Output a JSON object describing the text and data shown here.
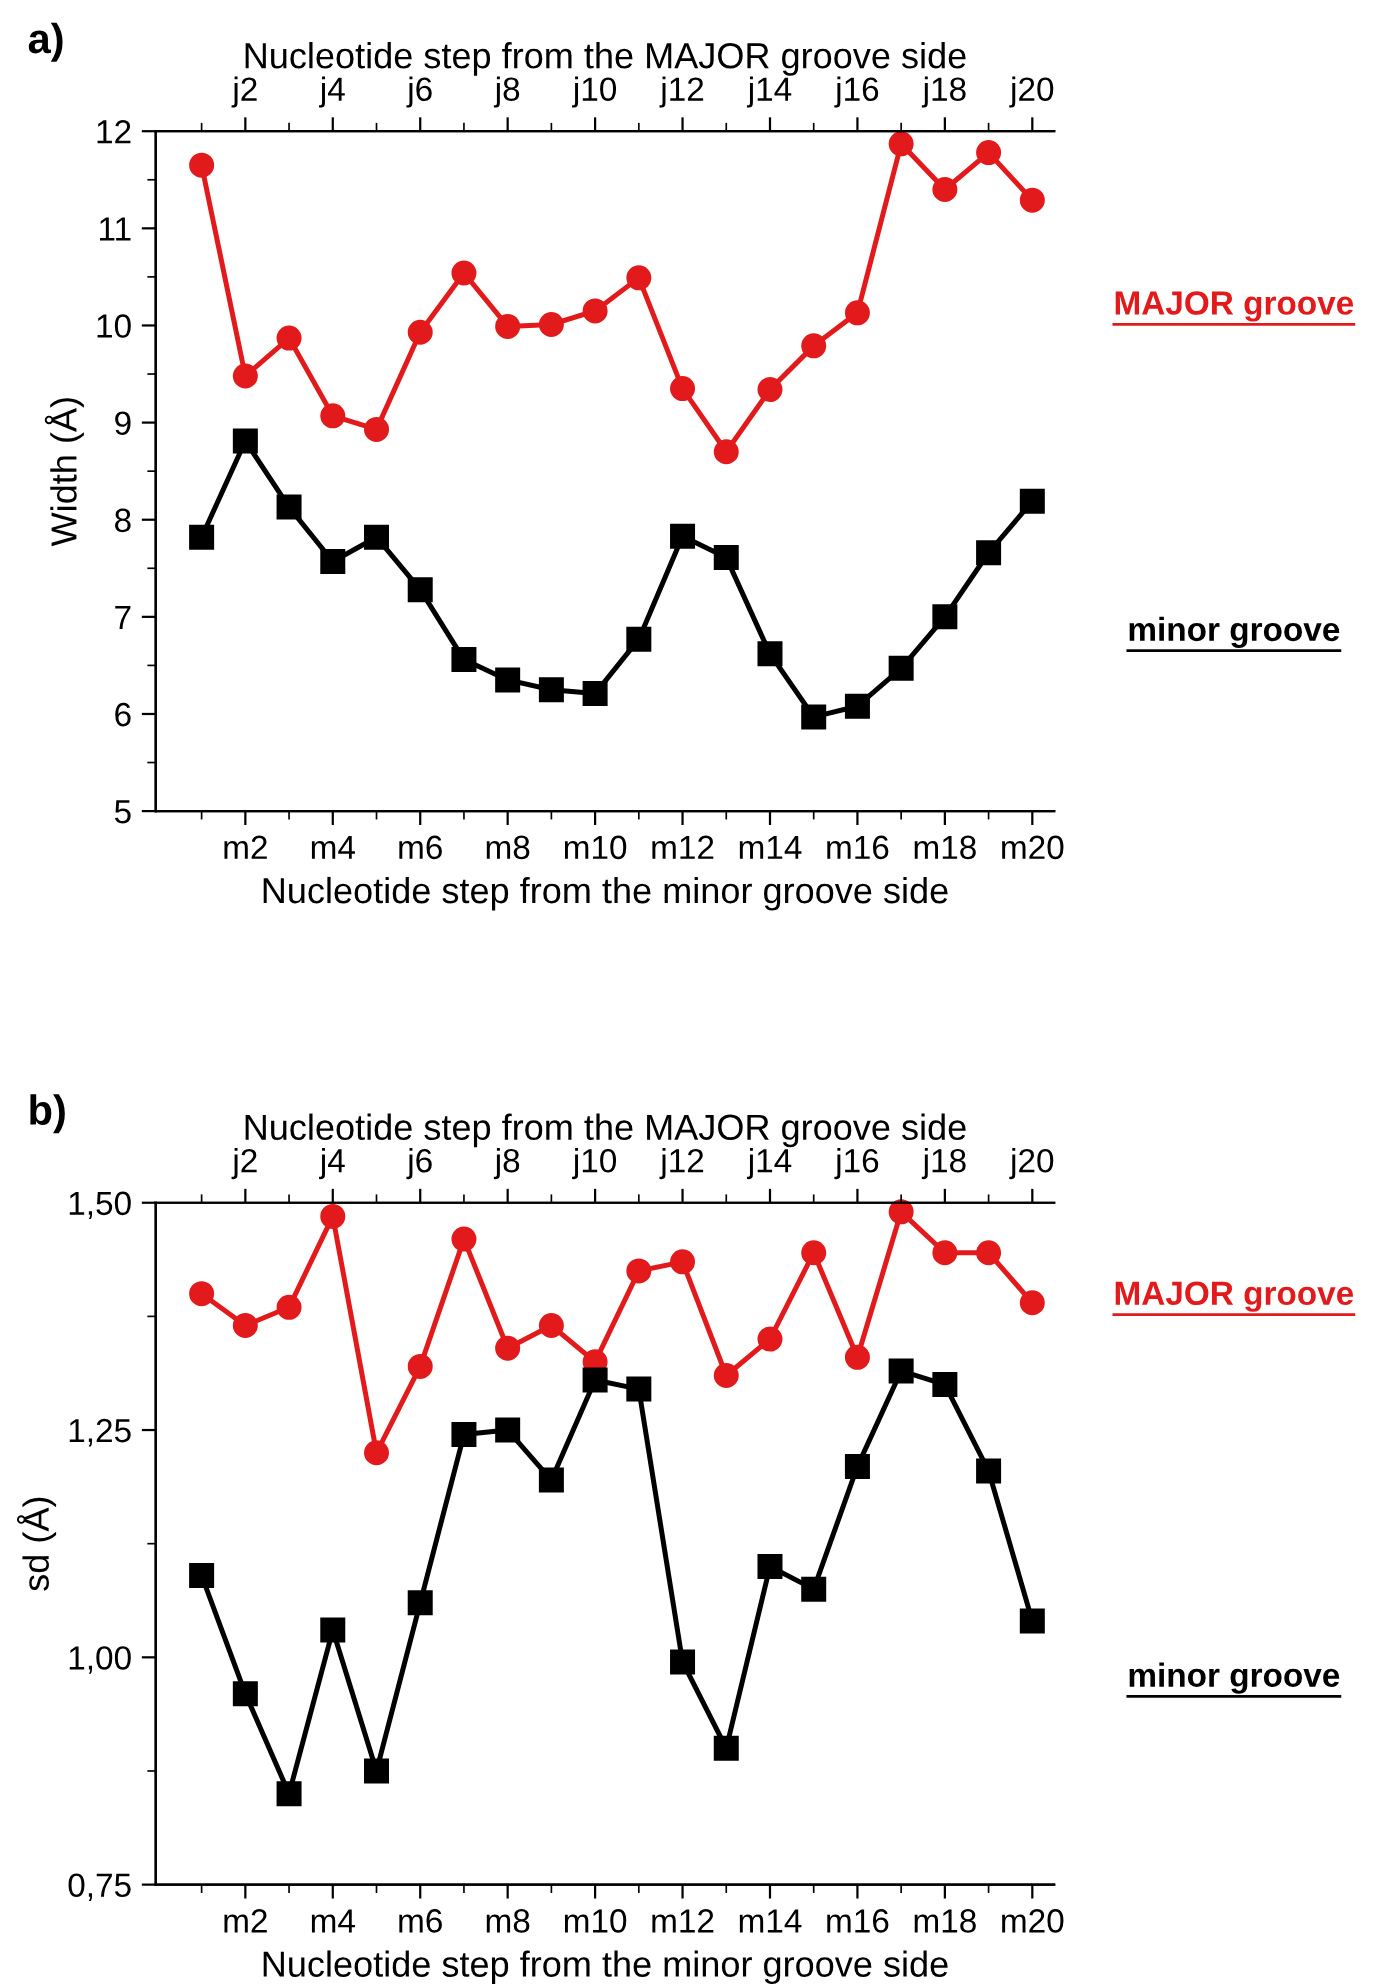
{
  "chart_data": [
    {
      "type": "line",
      "title": "a)",
      "ylabel": "Width (Å)",
      "xlabel": "Nucleotide step from the minor groove side",
      "x2label": "Nucleotide step from the MAJOR groove side",
      "categories": [
        null,
        "m2",
        null,
        "m4",
        null,
        "m6",
        null,
        "m8",
        null,
        "m10",
        null,
        "m12",
        null,
        "m14",
        null,
        "m16",
        null,
        "m18",
        null,
        "m20"
      ],
      "annotations": [
        "j2",
        "j4",
        "j6",
        "j8",
        "j10",
        "j12",
        "j14",
        "j16",
        "j18",
        "j20"
      ],
      "series": [
        {
          "name": "MAJOR groove",
          "color": "#e31a1c",
          "marker": "circle",
          "values": [
            11.65,
            9.48,
            9.87,
            9.07,
            8.93,
            9.93,
            10.54,
            9.99,
            10.01,
            10.15,
            10.49,
            9.35,
            8.7,
            9.34,
            9.79,
            10.13,
            11.87,
            11.4,
            11.78,
            11.29
          ]
        },
        {
          "name": "minor groove",
          "color": "#000000",
          "marker": "square",
          "values": [
            7.82,
            8.81,
            8.13,
            7.57,
            7.82,
            7.28,
            6.56,
            6.35,
            6.25,
            6.21,
            6.77,
            7.83,
            7.61,
            6.62,
            5.97,
            6.08,
            6.47,
            7.0,
            7.66,
            8.19
          ]
        }
      ],
      "ylim": [
        5,
        12
      ],
      "yticks": [
        5,
        {
          "value": 5.5,
          "label": null
        },
        6,
        {
          "value": 6.5,
          "label": null
        },
        7,
        {
          "value": 7.5,
          "label": null
        },
        8,
        {
          "value": 8.5,
          "label": null
        },
        9,
        {
          "value": 9.5,
          "label": null
        },
        10,
        {
          "value": 10.5,
          "label": null
        },
        11,
        {
          "value": 11.5,
          "label": null
        },
        12
      ],
      "legend": false,
      "grid": false
    },
    {
      "type": "line",
      "title": "b)",
      "ylabel": "sd (Å)",
      "xlabel": "Nucleotide step from the minor groove side",
      "x2label": "Nucleotide step from the MAJOR groove side",
      "categories": [
        null,
        "m2",
        null,
        "m4",
        null,
        "m6",
        null,
        "m8",
        null,
        "m10",
        null,
        "m12",
        null,
        "m14",
        null,
        "m16",
        null,
        "m18",
        null,
        "m20"
      ],
      "annotations": [
        "j2",
        "j4",
        "j6",
        "j8",
        "j10",
        "j12",
        "j14",
        "j16",
        "j18",
        "j20"
      ],
      "series": [
        {
          "name": "MAJOR groove",
          "color": "#e31a1c",
          "marker": "circle",
          "values": [
            1.4,
            1.365,
            1.385,
            1.485,
            1.225,
            1.32,
            1.46,
            1.34,
            1.365,
            1.325,
            1.425,
            1.435,
            1.31,
            1.35,
            1.445,
            1.33,
            1.49,
            1.445,
            1.445,
            1.39
          ]
        },
        {
          "name": "minor groove",
          "color": "#000000",
          "marker": "square",
          "values": [
            1.09,
            0.96,
            0.85,
            1.03,
            0.875,
            1.06,
            1.245,
            1.25,
            1.195,
            1.305,
            1.295,
            0.995,
            0.9,
            1.1,
            1.075,
            1.21,
            1.315,
            1.3,
            1.205,
            1.04
          ]
        }
      ],
      "ylim": [
        0.75,
        1.5
      ],
      "yticks": [
        {
          "value": 0.75,
          "label": "0,75"
        },
        {
          "value": 0.875,
          "label": null
        },
        {
          "value": 1.0,
          "label": "1,00"
        },
        {
          "value": 1.125,
          "label": null
        },
        {
          "value": 1.25,
          "label": "1,25"
        },
        {
          "value": 1.375,
          "label": null
        },
        {
          "value": 1.5,
          "label": "1,50"
        }
      ],
      "legend": false,
      "grid": false
    }
  ]
}
